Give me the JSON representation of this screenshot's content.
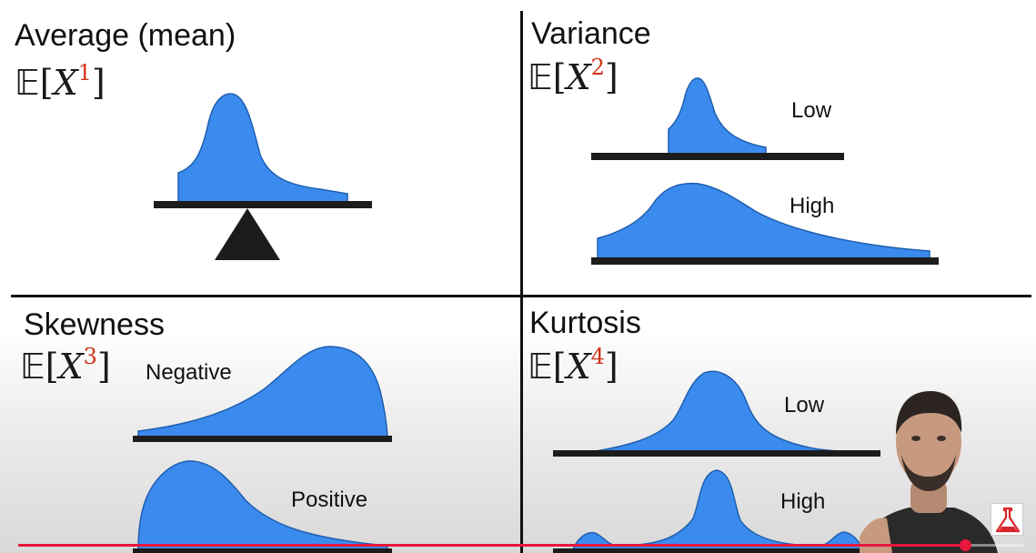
{
  "panels": {
    "mean": {
      "title": "Average (mean)",
      "moment": "1"
    },
    "variance": {
      "title": "Variance",
      "moment": "2",
      "low": "Low",
      "high": "High"
    },
    "skewness": {
      "title": "Skewness",
      "moment": "3",
      "negative": "Negative",
      "positive": "Positive"
    },
    "kurtosis": {
      "title": "Kurtosis",
      "moment": "4",
      "low": "Low",
      "high": "High"
    }
  },
  "formula": {
    "expectation": "𝔼",
    "open": "[",
    "variable": "X",
    "close": "]"
  },
  "colors": {
    "curve": "#3b8bef",
    "curve_stroke": "#1f5fae",
    "exponent": "#d0341c",
    "progress": "#e8173c"
  },
  "icons": {
    "logo": "flask-icon"
  },
  "video": {
    "progress": 0.942
  }
}
